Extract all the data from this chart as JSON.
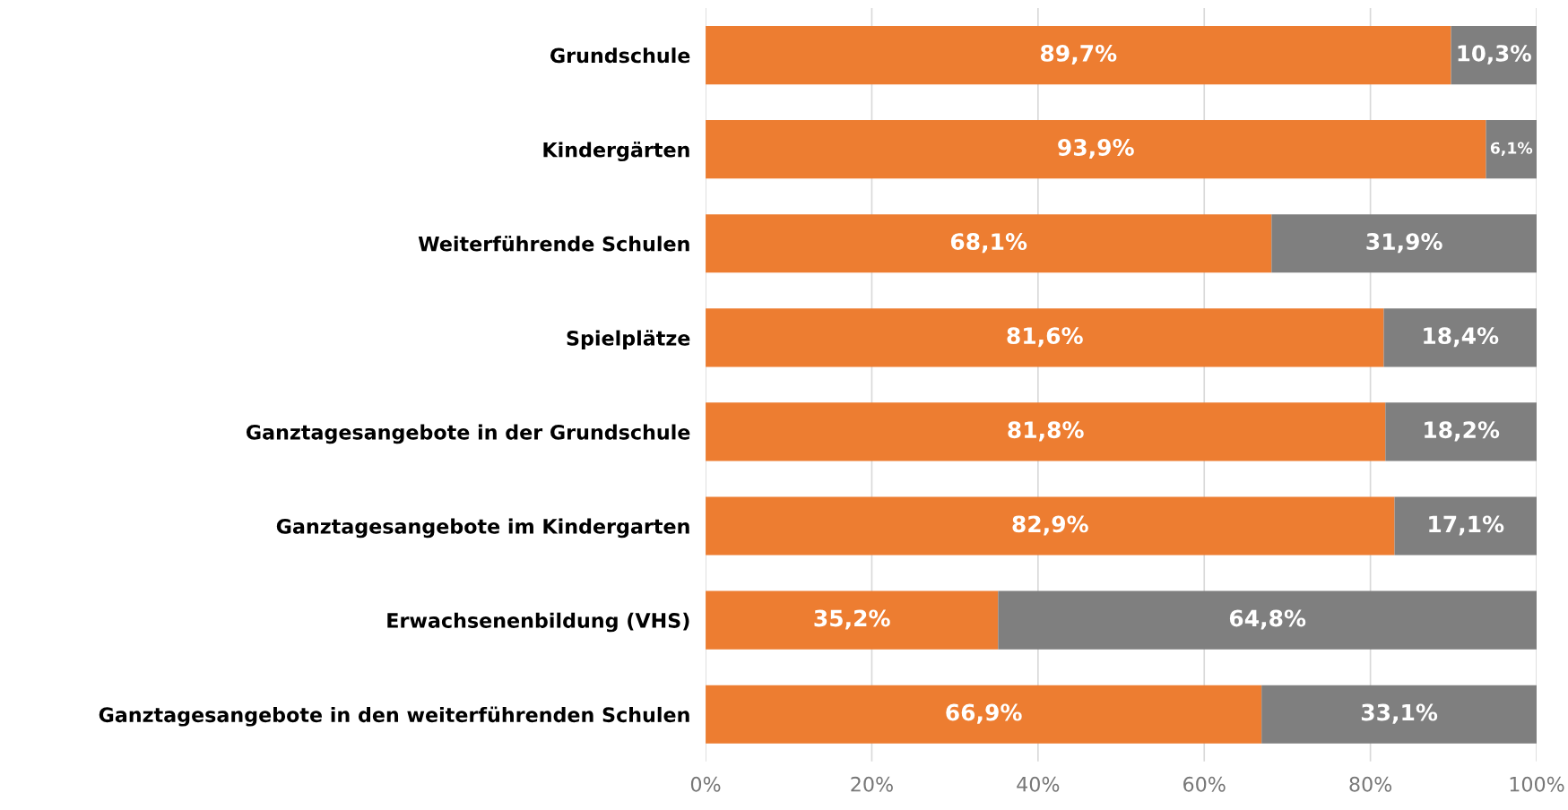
{
  "chart_data": {
    "type": "bar",
    "orientation": "horizontal",
    "stacked": true,
    "categories": [
      "Grundschule",
      "Kindergärten",
      "Weiterführende Schulen",
      "Spielplätze",
      "Ganztagesangebote in der Grundschule",
      "Ganztagesangebote im Kindergarten",
      "Erwachsenenbildung (VHS)",
      "Ganztagesangebote in den weiterführenden Schulen"
    ],
    "series": [
      {
        "color": "#ed7d31",
        "values": [
          89.7,
          93.9,
          68.1,
          81.6,
          81.8,
          82.9,
          35.2,
          66.9
        ],
        "value_labels": [
          "89,7%",
          "93,9%",
          "68,1%",
          "81,6%",
          "81,8%",
          "82,9%",
          "35,2%",
          "66,9%"
        ]
      },
      {
        "color": "#7f7f7f",
        "values": [
          10.3,
          6.1,
          31.9,
          18.4,
          18.2,
          17.1,
          64.8,
          33.1
        ],
        "value_labels": [
          "10,3%",
          "6,1%",
          "31,9%",
          "18,4%",
          "18,2%",
          "17,1%",
          "64,8%",
          "33,1%"
        ]
      }
    ],
    "xlim": [
      0,
      100
    ],
    "xticks": [
      {
        "value": 0,
        "label": "0%"
      },
      {
        "value": 20,
        "label": "20%"
      },
      {
        "value": 40,
        "label": "40%"
      },
      {
        "value": 60,
        "label": "60%"
      },
      {
        "value": 80,
        "label": "80%"
      },
      {
        "value": 100,
        "label": "100%"
      }
    ],
    "grid": "x",
    "legend": false
  }
}
